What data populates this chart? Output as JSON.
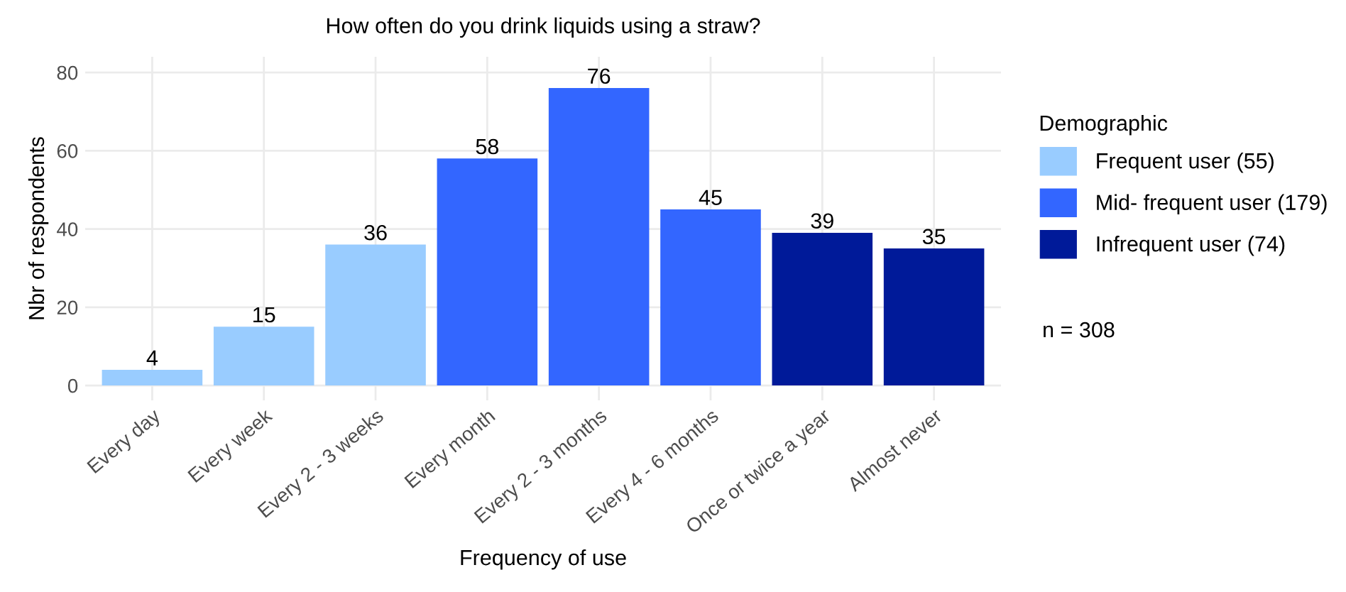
{
  "chart_data": {
    "type": "bar",
    "title": "How often do you drink liquids using a straw?",
    "xlabel": "Frequency of use",
    "ylabel": "Nbr of respondents",
    "legend_title": "Demographic",
    "categories": [
      "Every day",
      "Every week",
      "Every 2 - 3 weeks",
      "Every month",
      "Every 2 - 3 months",
      "Every 4 - 6 months",
      "Once or twice a year",
      "Almost never"
    ],
    "series": [
      {
        "name": "Frequent user (55)",
        "color": "#99ccff",
        "values": [
          4,
          15,
          36,
          null,
          null,
          null,
          null,
          null
        ]
      },
      {
        "name": "Mid- frequent user (179)",
        "color": "#3366ff",
        "values": [
          null,
          null,
          null,
          58,
          76,
          45,
          null,
          null
        ]
      },
      {
        "name": "Infrequent user (74)",
        "color": "#001a99",
        "values": [
          null,
          null,
          null,
          null,
          null,
          null,
          39,
          35
        ]
      }
    ],
    "ylim": [
      -3.8,
      84
    ],
    "yticks": [
      0,
      20,
      40,
      60,
      80
    ],
    "grid": true,
    "legend": "right",
    "data_labels": true,
    "annotations": [
      "n = 308"
    ]
  }
}
